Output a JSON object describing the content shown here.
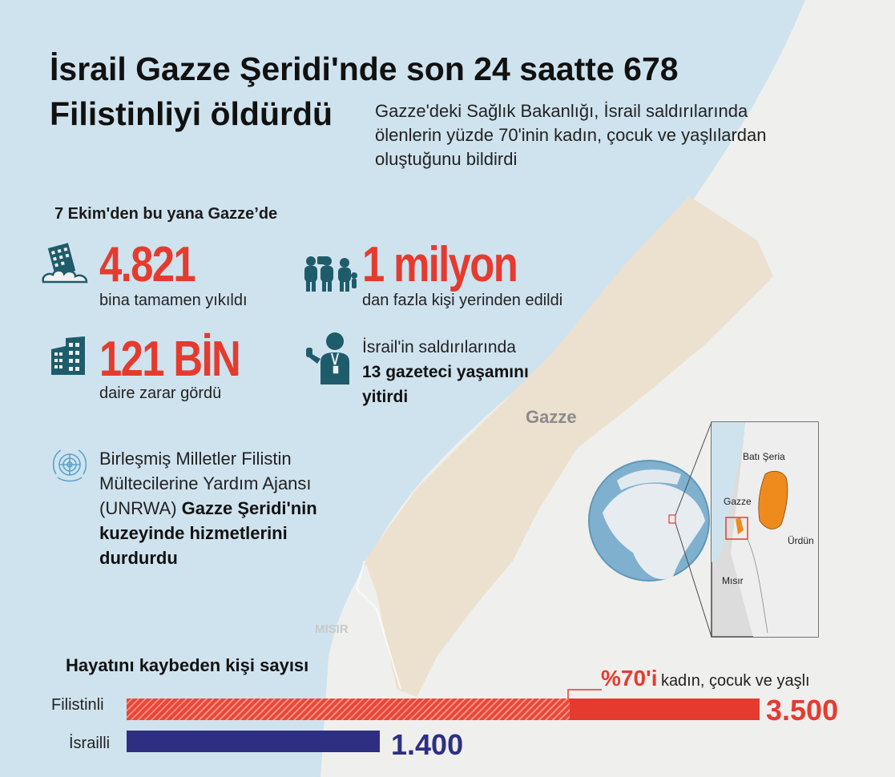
{
  "header": {
    "title": "İsrail Gazze Şeridi'nde son 24 saatte 678 Filistinliyi öldürdü",
    "subtitle": "Gazze'deki Sağlık Bakanlığı, İsrail saldırılarında ölenlerin yüzde 70'inin kadın, çocuk ve yaşlılardan oluştuğunu bildirdi"
  },
  "since_label": "7 Ekim'den bu yana Gazze’de",
  "stats": {
    "buildings": {
      "value": "4.821",
      "caption": "bina tamamen yıkıldı",
      "icon": "collapsed-building-icon"
    },
    "displaced": {
      "value": "1 milyon",
      "caption": "dan fazla kişi yerinden edildi",
      "icon": "displaced-people-icon"
    },
    "apartments": {
      "value": "121 BİN",
      "caption": "daire zarar gördü",
      "icon": "apartment-building-icon"
    },
    "journalists": {
      "line1": "İsrail'in saldırılarında",
      "line2": "13 gazeteci yaşamını yitirdi",
      "icon": "journalist-icon"
    }
  },
  "unrwa": {
    "icon": "un-emblem-icon",
    "text_plain": "Birleşmiş Milletler Filistin Mülteciler­ine Yardım Ajansı (UNRWA)",
    "text_bold": "Gazze Şeridi'nin kuzeyinde hizmetlerini durdurdu"
  },
  "map_labels": {
    "gaza_big": "Gazze",
    "egypt_big": "MISIR",
    "west_bank": "Batı Şeria",
    "gaza_inset": "Gazze",
    "jordan": "Ürdün",
    "egypt_inset": "Mısır"
  },
  "colors": {
    "sea": "#cfe3ee",
    "land": "#efede8",
    "gaza_strip": "#ece1cf",
    "accent_red": "#e53b2f",
    "israeli_navy": "#2e2f83",
    "inset_orange": "#ef8a1d"
  },
  "casualties": {
    "title": "Hayatını kaybeden kişi sayısı",
    "note_percent": "%70'i",
    "note_text": "kadın, çocuk ve yaşlı",
    "share_women_children_elderly": 0.7,
    "rows": [
      {
        "label": "Filistinli",
        "value": 3500,
        "value_text": "3.500"
      },
      {
        "label": "İsrailli",
        "value": 1400,
        "value_text": "1.400"
      }
    ]
  }
}
